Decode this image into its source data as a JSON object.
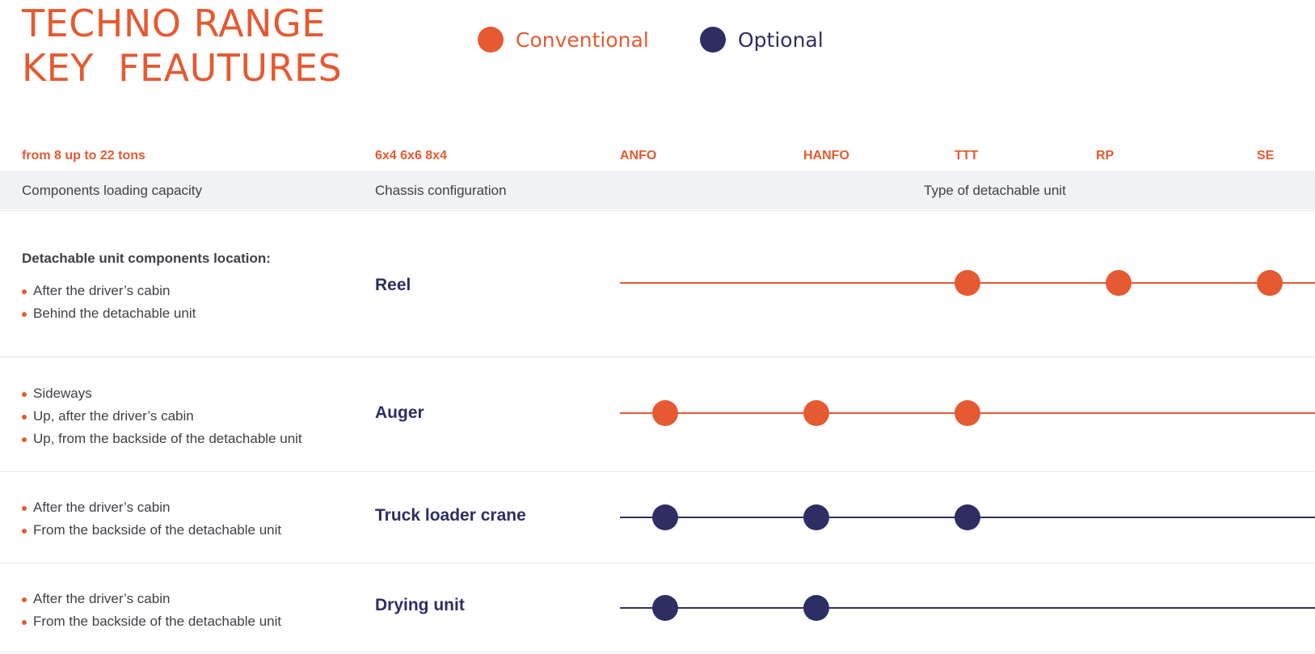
{
  "title": {
    "line1": "TECHNO RANGE",
    "line2": "KEY  FEAUTURES"
  },
  "legend": {
    "conventional": {
      "label": "Conventional",
      "color": "#e55a32"
    },
    "optional": {
      "label": "Optional",
      "color": "#2e2e65"
    }
  },
  "columns": {
    "capacity_value": "from 8 up to 22 tons",
    "chassis_value": "6x4 6x6 8x4",
    "unit_types": [
      "ANFO",
      "HANFO",
      "TTT",
      "RP",
      "SE"
    ]
  },
  "subheader": {
    "capacity": "Components loading capacity",
    "chassis": "Chassis configuration",
    "unit_type": "Type of detachable unit"
  },
  "rows": [
    {
      "intro": "Detachable unit components location:",
      "bullets": [
        "After the driver’s cabin",
        "Behind the detachable unit"
      ],
      "name": "Reel",
      "kind": "conventional",
      "marks": [
        "TTT",
        "RP",
        "SE"
      ]
    },
    {
      "intro": "",
      "bullets": [
        "Sideways",
        "Up, after the driver’s  cabin",
        "Up, from the backside of the detachable unit"
      ],
      "name": "Auger",
      "kind": "conventional",
      "marks": [
        "ANFO",
        "HANFO",
        "TTT"
      ]
    },
    {
      "intro": "",
      "bullets": [
        "After the driver’s cabin",
        "From the backside of the detachable unit"
      ],
      "name": "Truck loader crane",
      "kind": "optional",
      "marks": [
        "ANFO",
        "HANFO",
        "TTT"
      ]
    },
    {
      "intro": "",
      "bullets": [
        "After the driver’s  cabin",
        "From the backside of the detachable unit"
      ],
      "name": "Drying unit",
      "kind": "optional",
      "marks": [
        "ANFO",
        "HANFO"
      ]
    }
  ]
}
